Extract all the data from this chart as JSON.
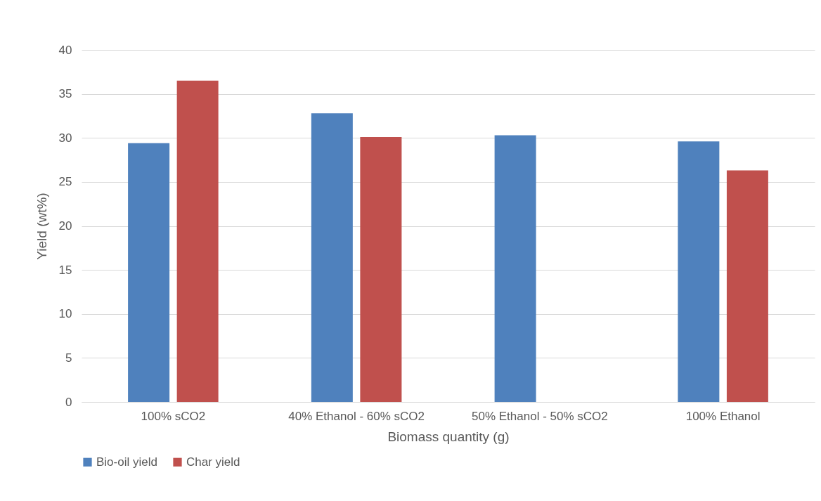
{
  "chart_data": {
    "type": "bar",
    "xlabel": "Biomass quantity (g)",
    "ylabel": "Yield (wt%)",
    "categories": [
      "100% sCO2",
      "40% Ethanol - 60% sCO2",
      "50% Ethanol - 50% sCO2",
      "100% Ethanol"
    ],
    "series": [
      {
        "name": "Bio-oil yield",
        "color": "#4f81bd",
        "values": [
          29.4,
          32.8,
          30.3,
          29.6
        ]
      },
      {
        "name": "Char yield",
        "color": "#c0504d",
        "values": [
          36.5,
          30.1,
          null,
          26.3
        ]
      }
    ],
    "ylim": [
      0,
      40
    ],
    "yticks": [
      0,
      5,
      10,
      15,
      20,
      25,
      30,
      35,
      40
    ],
    "grid": "y",
    "legend": "bottom"
  }
}
